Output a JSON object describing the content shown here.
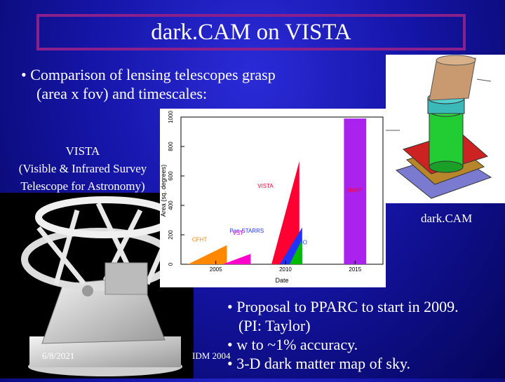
{
  "slide": {
    "title": "dark.CAM on VISTA",
    "bullet1_line1": "• Comparison of lensing telescopes grasp",
    "bullet1_line2": "(area x fov) and timescales:",
    "vista_label": [
      "VISTA",
      "(Visible & Infrared Survey",
      "Telescope for Astronomy)"
    ],
    "darkcam_label": "dark.CAM",
    "bullets2": [
      "• Proposal to PPARC to start in 2009.",
      "(PI: Taylor)",
      "• w to ~1% accuracy.",
      "• 3-D dark matter map of sky."
    ],
    "footer": {
      "date": "6/8/2021",
      "center": "IDM 2004",
      "page": ""
    }
  },
  "chart_data": {
    "type": "area",
    "xlabel": "Date",
    "ylabel": "Area (sq. degrees)",
    "xlim": [
      2002.5,
      2017
    ],
    "ylim": [
      0,
      1000
    ],
    "xticks": [
      2005,
      2010,
      2015
    ],
    "xtick_labels": [
      "2005",
      "2010",
      "2015"
    ],
    "yticks": [
      0,
      200,
      400,
      600,
      800,
      1000
    ],
    "series": [
      {
        "name": "CFHT",
        "color": "#ff8800",
        "points": [
          [
            2003.0,
            0
          ],
          [
            2005.8,
            130
          ],
          [
            2005.8,
            0
          ]
        ]
      },
      {
        "name": "VST",
        "color": "#ff00cc",
        "points": [
          [
            2005.5,
            0
          ],
          [
            2007.5,
            70
          ],
          [
            2007.5,
            0
          ]
        ]
      },
      {
        "name": "VISTA",
        "color": "#ff0033",
        "points": [
          [
            2009.0,
            0
          ],
          [
            2011.0,
            700
          ],
          [
            2011.0,
            0
          ]
        ]
      },
      {
        "name": "Pan-STARRS",
        "color": "#2233ff",
        "points": [
          [
            2009.6,
            0
          ],
          [
            2011.2,
            250
          ],
          [
            2011.2,
            0
          ]
        ]
      },
      {
        "name": "CTIO",
        "color": "#00bb00",
        "points": [
          [
            2010.3,
            0
          ],
          [
            2011.2,
            170
          ],
          [
            2011.2,
            0
          ]
        ]
      },
      {
        "name": "SNAP",
        "color": "#aa22ee",
        "points": [
          [
            2014.2,
            0
          ],
          [
            2014.2,
            990
          ],
          [
            2015.8,
            990
          ],
          [
            2015.8,
            0
          ]
        ]
      }
    ],
    "labels": [
      {
        "text": "VISTA",
        "x": 2008.0,
        "y": 520,
        "color": "#ff0033"
      },
      {
        "text": "SNAP",
        "x": 2014.4,
        "y": 490,
        "color": "#ff0033"
      },
      {
        "text": "Pan-STARRS",
        "x": 2006.0,
        "y": 215,
        "color": "#2233ff"
      },
      {
        "text": "CTIO",
        "x": 2010.6,
        "y": 135,
        "color": "#2233ff"
      },
      {
        "text": "CFHT",
        "x": 2003.3,
        "y": 155,
        "color": "#ff8800"
      },
      {
        "text": "VST",
        "x": 2006.2,
        "y": 200,
        "color": "#ff00cc"
      }
    ]
  },
  "colors": {
    "title_border": "#8b1f8b",
    "background": "#1515a8"
  },
  "images": {
    "telescope": "vista-telescope-render",
    "camera": "dark-cam-instrument-render"
  }
}
